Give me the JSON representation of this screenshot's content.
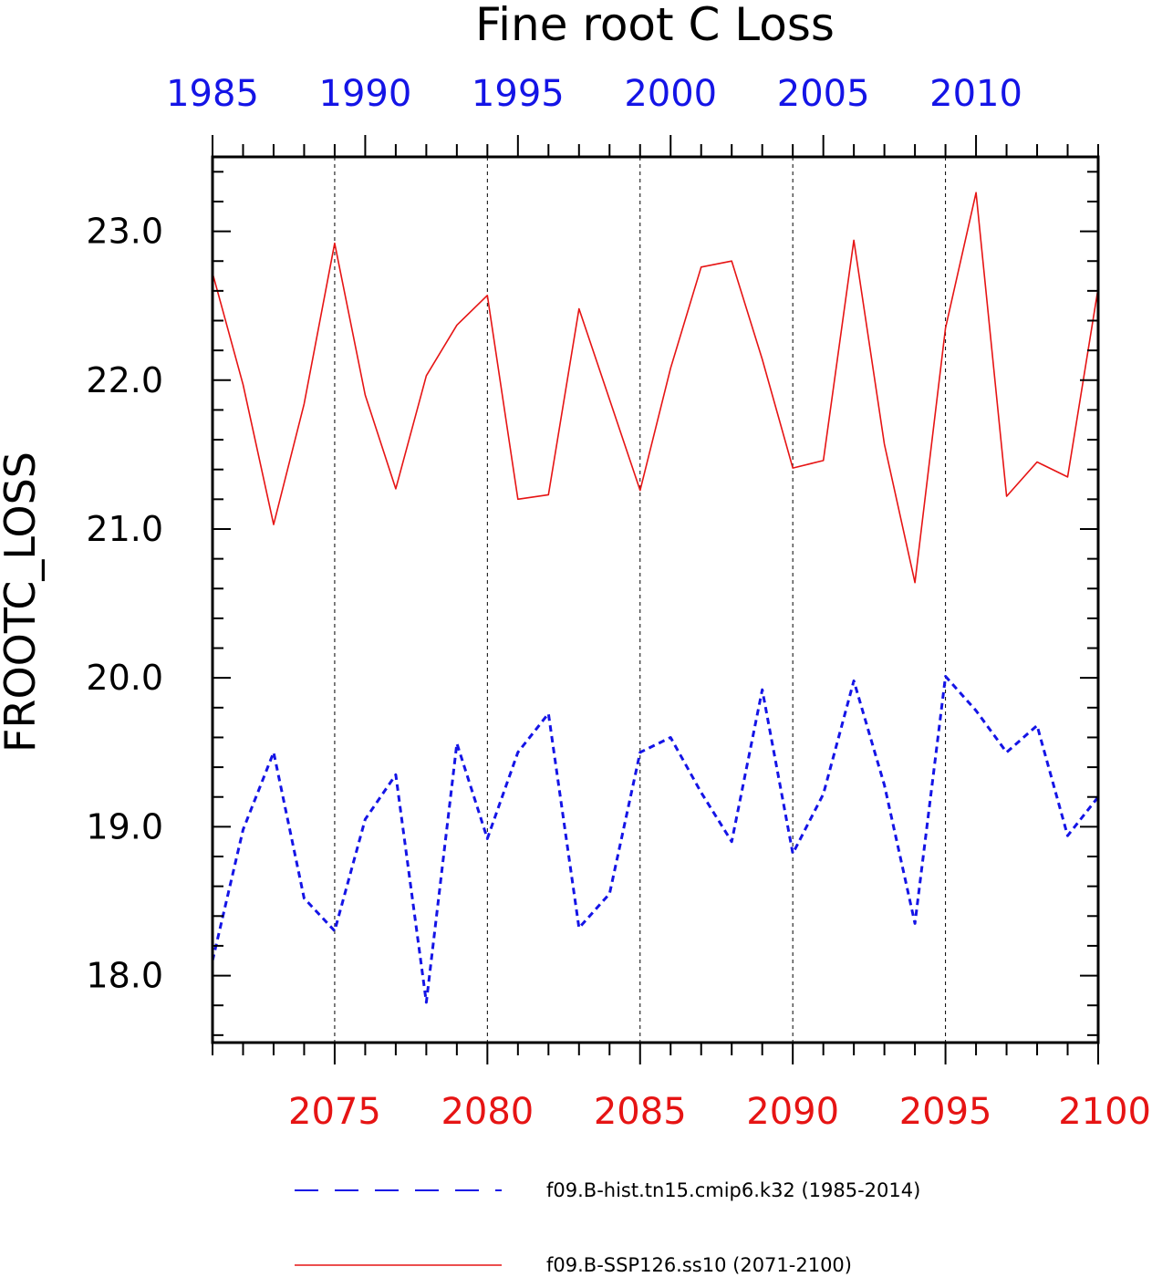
{
  "chart_data": {
    "type": "line",
    "title": "Fine root C Loss",
    "ylabel": "FROOTC_LOSS",
    "ylim": [
      17.55,
      23.5
    ],
    "yticks": [
      "18.0",
      "19.0",
      "20.0",
      "21.0",
      "22.0",
      "23.0"
    ],
    "grid": "vertical dashed at labeled x ticks",
    "legend_position": "bottom",
    "top_axis": {
      "range": [
        1985,
        2014
      ],
      "ticks": [
        "1985",
        "1990",
        "1995",
        "2000",
        "2005",
        "2010"
      ],
      "color": "#1414e6"
    },
    "bottom_axis": {
      "range": [
        2071,
        2100
      ],
      "ticks": [
        "2075",
        "2080",
        "2085",
        "2090",
        "2095",
        "2100"
      ],
      "color": "#e61414"
    },
    "series": [
      {
        "name": "f09.B-hist.tn15.cmip6.k32 (1985-2014)",
        "axis": "top",
        "color": "#1414e6",
        "style": "dashed",
        "x": [
          1985,
          1986,
          1987,
          1988,
          1989,
          1990,
          1991,
          1992,
          1993,
          1994,
          1995,
          1996,
          1997,
          1998,
          1999,
          2000,
          2001,
          2002,
          2003,
          2004,
          2005,
          2006,
          2007,
          2008,
          2009,
          2010,
          2011,
          2012,
          2013,
          2014
        ],
        "values": [
          18.1,
          18.98,
          19.5,
          18.52,
          18.3,
          19.05,
          19.35,
          17.82,
          19.56,
          18.92,
          19.5,
          19.76,
          18.32,
          18.55,
          19.5,
          19.6,
          19.23,
          18.9,
          19.92,
          18.82,
          19.22,
          19.98,
          19.28,
          18.35,
          20.01,
          19.78,
          19.5,
          19.68,
          18.94,
          19.2
        ]
      },
      {
        "name": "f09.B-SSP126.ss10 (2071-2100)",
        "axis": "bottom",
        "color": "#e61414",
        "style": "solid",
        "x": [
          2071,
          2072,
          2073,
          2074,
          2075,
          2076,
          2077,
          2078,
          2079,
          2080,
          2081,
          2082,
          2083,
          2084,
          2085,
          2086,
          2087,
          2088,
          2089,
          2090,
          2091,
          2092,
          2093,
          2094,
          2095,
          2096,
          2097,
          2098,
          2099,
          2100
        ],
        "values": [
          22.72,
          21.97,
          21.03,
          21.84,
          22.92,
          21.9,
          21.27,
          22.03,
          22.37,
          22.57,
          21.2,
          21.23,
          22.48,
          21.87,
          21.26,
          22.08,
          22.76,
          22.8,
          22.14,
          21.41,
          21.46,
          22.94,
          21.57,
          20.64,
          22.35,
          23.26,
          21.22,
          21.45,
          21.35,
          22.62
        ]
      }
    ]
  }
}
